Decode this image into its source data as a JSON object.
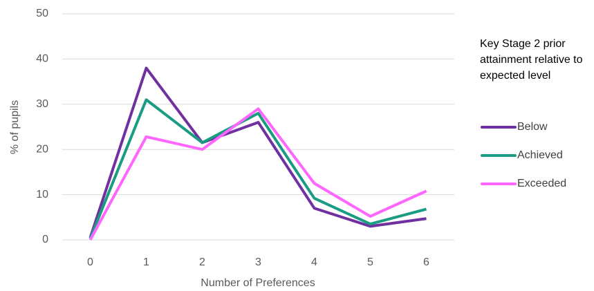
{
  "chart_data": {
    "type": "line",
    "x_label": "Number of Preferences",
    "y_label": "% of pupils",
    "legend_title": "Key Stage 2 prior attainment relative to expected level",
    "categories": [
      "0",
      "1",
      "2",
      "3",
      "4",
      "5",
      "6"
    ],
    "series": [
      {
        "name": "Below",
        "color": "#7030a0",
        "values": [
          0.5,
          38,
          21.5,
          26,
          7,
          3,
          4.7
        ]
      },
      {
        "name": "Achieved",
        "color": "#1a9c83",
        "values": [
          0.3,
          31,
          21.5,
          28,
          9.2,
          3.5,
          6.8
        ]
      },
      {
        "name": "Exceeded",
        "color": "#ff66ff",
        "values": [
          0,
          22.8,
          20,
          29,
          12.5,
          5.2,
          10.8
        ]
      }
    ],
    "ylim": [
      0,
      50
    ],
    "yticks": [
      0,
      10,
      20,
      30,
      40,
      50
    ],
    "grid": true,
    "legend": "right"
  }
}
